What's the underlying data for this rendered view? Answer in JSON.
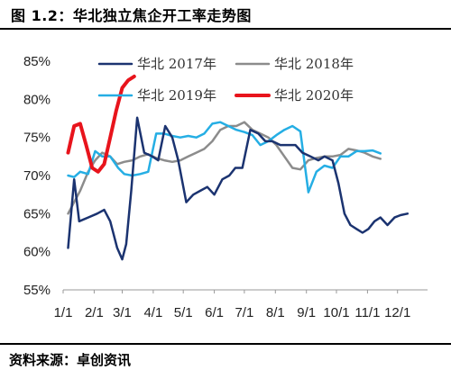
{
  "header": {
    "title": "图 1.2：华北独立焦企开工率走势图"
  },
  "footer": {
    "source": "资料来源：卓创资讯"
  },
  "chart_data": {
    "type": "line",
    "title": "图 1.2：华北独立焦企开工率走势图",
    "xlabel": "",
    "ylabel": "",
    "x_ticks": [
      "1/1",
      "2/1",
      "3/1",
      "4/1",
      "5/1",
      "6/1",
      "7/1",
      "8/1",
      "9/1",
      "10/1",
      "11/1",
      "12/1"
    ],
    "y_ticks": [
      "55%",
      "60%",
      "65%",
      "70%",
      "75%",
      "80%",
      "85%"
    ],
    "ylim": [
      55,
      85
    ],
    "xlim": [
      1,
      365
    ],
    "grid": false,
    "legend_position": "top",
    "series": [
      {
        "name": "华北 2017年",
        "color": "#1b3370",
        "x": [
          6,
          12,
          17,
          26,
          35,
          42,
          48,
          55,
          60,
          64,
          69,
          75,
          82,
          90,
          96,
          103,
          110,
          116,
          124,
          131,
          138,
          145,
          152,
          160,
          167,
          173,
          180,
          188,
          196,
          203,
          210,
          218,
          226,
          233,
          240,
          248,
          256,
          262,
          270,
          276,
          282,
          288,
          294,
          300,
          306,
          312,
          318,
          325,
          332,
          338,
          345,
          352,
          358,
          364
        ],
        "y": [
          60.5,
          69.5,
          64,
          64.5,
          65,
          65.5,
          64,
          60.5,
          59,
          61,
          68,
          77.6,
          73,
          72.5,
          72,
          76.5,
          75,
          72,
          66.5,
          67.5,
          68,
          68.5,
          67.5,
          69.5,
          70,
          71,
          71,
          76,
          75.5,
          74.5,
          74.5,
          74,
          74,
          74,
          73,
          72.5,
          72,
          72.5,
          72,
          69,
          65,
          63.5,
          63,
          62.5,
          63,
          64,
          64.5,
          63.5,
          64.5,
          64.8,
          65,
          null,
          null,
          null
        ]
      },
      {
        "name": "华北 2018年",
        "color": "#8c8c8c",
        "x": [
          6,
          12,
          18,
          26,
          33,
          40,
          48,
          55,
          62,
          70,
          78,
          86,
          94,
          102,
          110,
          118,
          126,
          134,
          142,
          150,
          158,
          166,
          174,
          182,
          190,
          198,
          206,
          214,
          222,
          230,
          238,
          246,
          254,
          262,
          270,
          278,
          286,
          294,
          302,
          310,
          318,
          326,
          334,
          342,
          350,
          358
        ],
        "y": [
          65,
          66.5,
          68,
          70.5,
          72,
          73,
          72.5,
          71.5,
          71.8,
          72,
          72.5,
          72.8,
          72.3,
          72,
          71.8,
          72,
          72.5,
          73,
          73.5,
          74.5,
          76,
          76.5,
          76.5,
          77,
          76,
          75.5,
          75,
          74,
          72.5,
          71,
          70.8,
          72,
          72.3,
          72.5,
          72.5,
          72.7,
          73.5,
          73.3,
          73,
          72.5,
          72.2,
          null,
          null,
          null,
          null,
          null
        ]
      },
      {
        "name": "华北 2019年",
        "color": "#25aee4",
        "x": [
          6,
          12,
          18,
          26,
          33,
          40,
          48,
          56,
          62,
          70,
          78,
          86,
          94,
          102,
          110,
          118,
          126,
          134,
          142,
          150,
          158,
          166,
          174,
          182,
          190,
          198,
          206,
          214,
          222,
          230,
          238,
          246,
          254,
          262,
          270,
          278,
          286,
          294,
          302,
          310,
          318,
          326,
          334,
          342,
          350,
          358
        ],
        "y": [
          70,
          69.8,
          70.5,
          70.2,
          73.2,
          72.5,
          72.5,
          71,
          70.2,
          70,
          70.2,
          70.5,
          75.5,
          75.5,
          75.2,
          75,
          75.2,
          75,
          75.5,
          76.8,
          77,
          76.5,
          76,
          75.7,
          75.3,
          74,
          74.5,
          75.3,
          76,
          76.5,
          75.8,
          67.8,
          70.5,
          71.3,
          71,
          72.5,
          72.5,
          73.2,
          73.2,
          73.3,
          72.9,
          null,
          null,
          null,
          null,
          null
        ]
      },
      {
        "name": "华北 2020年",
        "color": "#e8141c",
        "x": [
          6,
          12,
          18,
          24,
          30,
          36,
          42,
          48,
          54,
          60,
          66,
          72
        ],
        "y": [
          73,
          76.5,
          76.8,
          74,
          71,
          70.5,
          71.5,
          75,
          78.5,
          81.5,
          82.5,
          83
        ]
      }
    ]
  }
}
